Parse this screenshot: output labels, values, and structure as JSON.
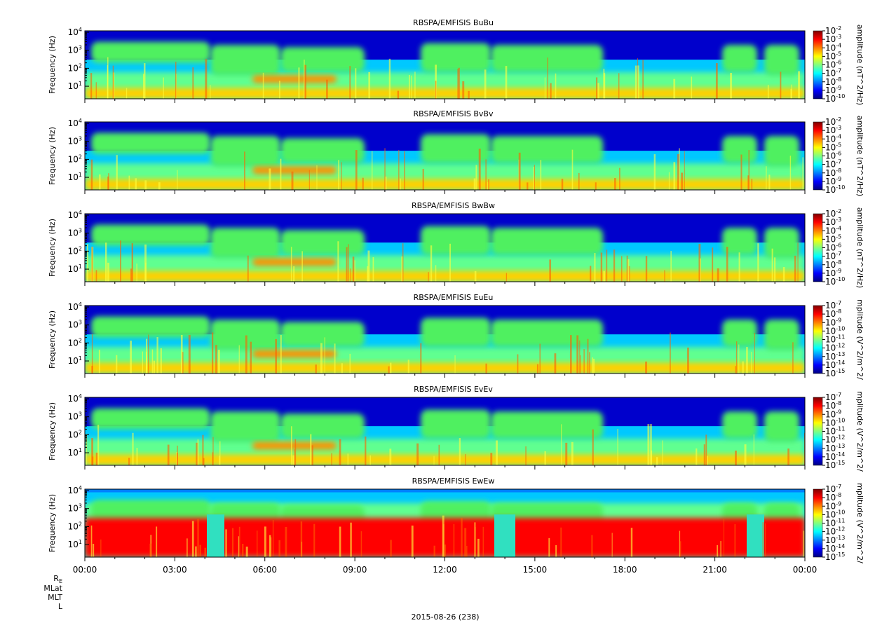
{
  "chart_data": [
    {
      "type": "heatmap",
      "title": "RBSPA/EMFISIS  BuBu",
      "ylabel": "Frequency (Hz)",
      "yscale": "log",
      "ylim": [
        2,
        12000
      ],
      "yticks": [
        10,
        100,
        1000,
        10000
      ],
      "colorbar": {
        "label": "amplitude (nT^2/Hz)",
        "scale": "log",
        "range": [
          1e-10,
          0.01
        ],
        "ticks": [
          -10,
          -9,
          -8,
          -7,
          -6,
          -5,
          -4,
          -3,
          -2
        ]
      }
    },
    {
      "type": "heatmap",
      "title": "RBSPA/EMFISIS  BvBv",
      "ylabel": "Frequency (Hz)",
      "yscale": "log",
      "ylim": [
        2,
        12000
      ],
      "yticks": [
        10,
        100,
        1000,
        10000
      ],
      "colorbar": {
        "label": "amplitude (nT^2/Hz)",
        "scale": "log",
        "range": [
          1e-10,
          0.01
        ],
        "ticks": [
          -10,
          -9,
          -8,
          -7,
          -6,
          -5,
          -4,
          -3,
          -2
        ]
      }
    },
    {
      "type": "heatmap",
      "title": "RBSPA/EMFISIS  BwBw",
      "ylabel": "Frequency (Hz)",
      "yscale": "log",
      "ylim": [
        2,
        12000
      ],
      "yticks": [
        10,
        100,
        1000,
        10000
      ],
      "colorbar": {
        "label": "amplitude (nT^2/Hz)",
        "scale": "log",
        "range": [
          1e-10,
          0.01
        ],
        "ticks": [
          -10,
          -9,
          -8,
          -7,
          -6,
          -5,
          -4,
          -3,
          -2
        ]
      }
    },
    {
      "type": "heatmap",
      "title": "RBSPA/EMFISIS  EuEu",
      "ylabel": "Frequency (Hz)",
      "yscale": "log",
      "ylim": [
        2,
        12000
      ],
      "yticks": [
        10,
        100,
        1000,
        10000
      ],
      "colorbar": {
        "label": "mplitude (V^2/m^2/",
        "scale": "log",
        "range": [
          1e-15,
          1e-07
        ],
        "ticks": [
          -15,
          -14,
          -13,
          -12,
          -11,
          -10,
          -9,
          -8,
          -7
        ]
      }
    },
    {
      "type": "heatmap",
      "title": "RBSPA/EMFISIS  EvEv",
      "ylabel": "Frequency (Hz)",
      "yscale": "log",
      "ylim": [
        2,
        12000
      ],
      "yticks": [
        10,
        100,
        1000,
        10000
      ],
      "colorbar": {
        "label": "mplitude (V^2/m^2/",
        "scale": "log",
        "range": [
          1e-15,
          1e-07
        ],
        "ticks": [
          -15,
          -14,
          -13,
          -12,
          -11,
          -10,
          -9,
          -8,
          -7
        ]
      }
    },
    {
      "type": "heatmap",
      "title": "RBSPA/EMFISIS  EwEw",
      "ylabel": "Frequency (Hz)",
      "yscale": "log",
      "ylim": [
        2,
        12000
      ],
      "yticks": [
        10,
        100,
        1000,
        10000
      ],
      "colorbar": {
        "label": "mplitude (V^2/m^2/",
        "scale": "log",
        "range": [
          1e-15,
          1e-07
        ],
        "ticks": [
          -15,
          -14,
          -13,
          -12,
          -11,
          -10,
          -9,
          -8,
          -7
        ]
      }
    }
  ],
  "x_axis": {
    "ticks": [
      "00:00",
      "03:00",
      "06:00",
      "09:00",
      "12:00",
      "15:00",
      "18:00",
      "21:00",
      "00:00"
    ],
    "minor_per_major": 3
  },
  "ephemeris_labels": [
    "R",
    "MLat",
    "MLT",
    "L"
  ],
  "ephemeris_subscript": "E",
  "date_label": "2015-08-26 (238)",
  "colors": {
    "colormap": [
      "#00007f",
      "#0000ff",
      "#0080ff",
      "#00ffff",
      "#80ff80",
      "#ffff00",
      "#ff8000",
      "#ff0000",
      "#7f0000"
    ]
  }
}
